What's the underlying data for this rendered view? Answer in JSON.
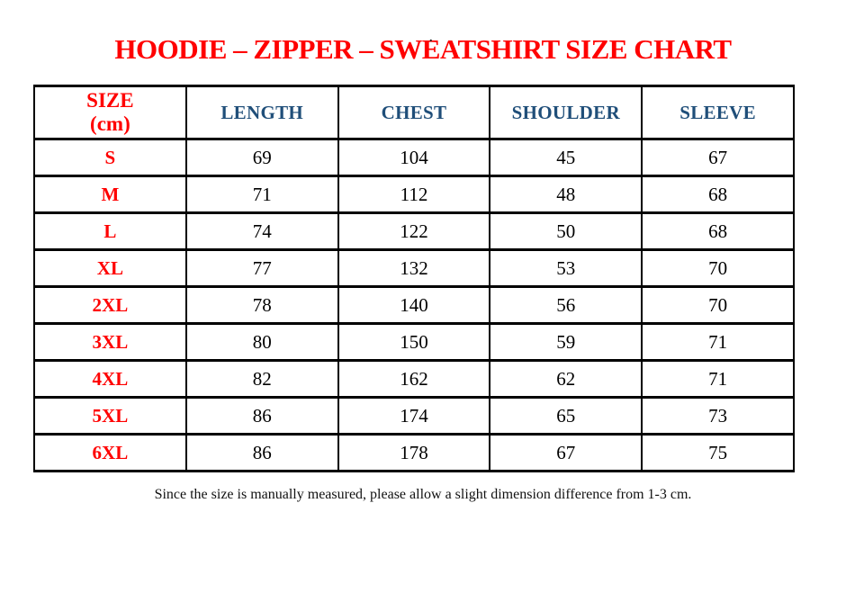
{
  "page": {
    "stray_mark": ".",
    "title": "HOODIE – ZIPPER – SWEATSHIRT SIZE CHART",
    "footer_note": "Since the size is manually measured, please allow a slight dimension difference from 1-3 cm."
  },
  "table": {
    "header": {
      "size_label_line1": "SIZE",
      "size_label_line2": "(cm)",
      "columns": [
        "LENGTH",
        "CHEST",
        "SHOULDER",
        "SLEEVE"
      ]
    },
    "rows": [
      [
        "S",
        "69",
        "104",
        "45",
        "67"
      ],
      [
        "M",
        "71",
        "112",
        "48",
        "68"
      ],
      [
        "L",
        "74",
        "122",
        "50",
        "68"
      ],
      [
        "XL",
        "77",
        "132",
        "53",
        "70"
      ],
      [
        "2XL",
        "78",
        "140",
        "56",
        "70"
      ],
      [
        "3XL",
        "80",
        "150",
        "59",
        "71"
      ],
      [
        "4XL",
        "82",
        "162",
        "62",
        "71"
      ],
      [
        "5XL",
        "86",
        "174",
        "65",
        "73"
      ],
      [
        "6XL",
        "86",
        "178",
        "67",
        "75"
      ]
    ]
  },
  "colors": {
    "accent_red": "#ff0000",
    "header_blue": "#1f4e79",
    "border_black": "#000000"
  }
}
